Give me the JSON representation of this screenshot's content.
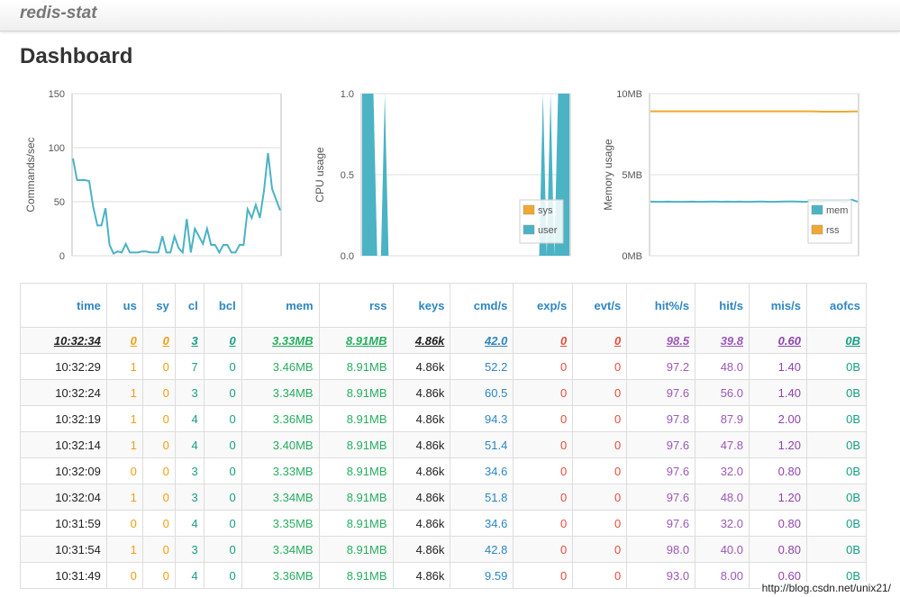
{
  "app": {
    "brand": "redis-stat"
  },
  "page": {
    "title": "Dashboard"
  },
  "chart_data": [
    {
      "type": "line",
      "ylabel": "Commands/sec",
      "ylim": [
        0,
        150
      ],
      "y_ticks": [
        "150",
        "100",
        "50",
        "0"
      ],
      "grid": true,
      "series": [
        {
          "name": "",
          "color": "#4bb3c4",
          "values": [
            90,
            70,
            70,
            70,
            69,
            45,
            28,
            28,
            44,
            10,
            2,
            4,
            3,
            11,
            3,
            3,
            3,
            4,
            4,
            3,
            3,
            3,
            18,
            3,
            3,
            18,
            7,
            3,
            34,
            3,
            25,
            18,
            11,
            25,
            10,
            10,
            3,
            10,
            10,
            3,
            3,
            10,
            10,
            43,
            35,
            47,
            35,
            60,
            95,
            62,
            52,
            42
          ]
        }
      ]
    },
    {
      "type": "area",
      "ylabel": "CPU usage",
      "ylim": [
        0,
        1
      ],
      "y_ticks": [
        "1.0",
        "0.5",
        "0.0"
      ],
      "grid": true,
      "legend": "bottom-right",
      "series": [
        {
          "name": "sys",
          "color": "#f0a830",
          "values": []
        },
        {
          "name": "user",
          "color": "#4bb3c4",
          "values": [
            1,
            1,
            1,
            1,
            0,
            0,
            1,
            0,
            0,
            0,
            0,
            0,
            0,
            0,
            0,
            0,
            0,
            0,
            0,
            0,
            0,
            0,
            0,
            0,
            0,
            0,
            0,
            0,
            0,
            0,
            0,
            0,
            0,
            0,
            0,
            0,
            0,
            0,
            0,
            0,
            0,
            0,
            0,
            0,
            0,
            0,
            0,
            0,
            1,
            0,
            1,
            0,
            1,
            1,
            1,
            1
          ]
        }
      ]
    },
    {
      "type": "line",
      "ylabel": "Memory usage",
      "ylim": [
        0,
        10
      ],
      "y_ticks": [
        "10MB",
        "5MB",
        "0MB"
      ],
      "grid": true,
      "legend": "bottom-right",
      "series": [
        {
          "name": "mem",
          "color": "#4bb3c4",
          "values": [
            3.34,
            3.33,
            3.33,
            3.34,
            3.33,
            3.33,
            3.33,
            3.34,
            3.33,
            3.33,
            3.34,
            3.34,
            3.33,
            3.34,
            3.33,
            3.34,
            3.33,
            3.33,
            3.34,
            3.34,
            3.33,
            3.33,
            3.34,
            3.35,
            3.35,
            3.34,
            3.33,
            3.34,
            3.33,
            3.34,
            3.36,
            3.4,
            3.36,
            3.34,
            3.46,
            3.33
          ]
        },
        {
          "name": "rss",
          "color": "#f0a830",
          "values": [
            8.91,
            8.91,
            8.91,
            8.91,
            8.91,
            8.91,
            8.91,
            8.91,
            8.91,
            8.91,
            8.91,
            8.91,
            8.91,
            8.91,
            8.91,
            8.91,
            8.91,
            8.91,
            8.91,
            8.91,
            8.91,
            8.91,
            8.91,
            8.91,
            8.91,
            8.91,
            8.91,
            8.91,
            8.9,
            8.89,
            8.89,
            8.89,
            8.89,
            8.89,
            8.9,
            8.9
          ]
        }
      ]
    }
  ],
  "table": {
    "headers": [
      "time",
      "us",
      "sy",
      "cl",
      "bcl",
      "mem",
      "rss",
      "keys",
      "cmd/s",
      "exp/s",
      "evt/s",
      "hit%/s",
      "hit/s",
      "mis/s",
      "aofcs"
    ],
    "rows": [
      [
        "10:32:34",
        "0",
        "0",
        "3",
        "0",
        "3.33MB",
        "8.91MB",
        "4.86k",
        "42.0",
        "0",
        "0",
        "98.5",
        "39.8",
        "0.60",
        "0B"
      ],
      [
        "10:32:29",
        "1",
        "0",
        "7",
        "0",
        "3.46MB",
        "8.91MB",
        "4.86k",
        "52.2",
        "0",
        "0",
        "97.2",
        "48.0",
        "1.40",
        "0B"
      ],
      [
        "10:32:24",
        "1",
        "0",
        "3",
        "0",
        "3.34MB",
        "8.91MB",
        "4.86k",
        "60.5",
        "0",
        "0",
        "97.6",
        "56.0",
        "1.40",
        "0B"
      ],
      [
        "10:32:19",
        "1",
        "0",
        "4",
        "0",
        "3.36MB",
        "8.91MB",
        "4.86k",
        "94.3",
        "0",
        "0",
        "97.8",
        "87.9",
        "2.00",
        "0B"
      ],
      [
        "10:32:14",
        "1",
        "0",
        "4",
        "0",
        "3.40MB",
        "8.91MB",
        "4.86k",
        "51.4",
        "0",
        "0",
        "97.6",
        "47.8",
        "1.20",
        "0B"
      ],
      [
        "10:32:09",
        "0",
        "0",
        "3",
        "0",
        "3.33MB",
        "8.91MB",
        "4.86k",
        "34.6",
        "0",
        "0",
        "97.6",
        "32.0",
        "0.80",
        "0B"
      ],
      [
        "10:32:04",
        "1",
        "0",
        "3",
        "0",
        "3.34MB",
        "8.91MB",
        "4.86k",
        "51.8",
        "0",
        "0",
        "97.6",
        "48.0",
        "1.20",
        "0B"
      ],
      [
        "10:31:59",
        "0",
        "0",
        "4",
        "0",
        "3.35MB",
        "8.91MB",
        "4.86k",
        "34.6",
        "0",
        "0",
        "97.6",
        "32.0",
        "0.80",
        "0B"
      ],
      [
        "10:31:54",
        "1",
        "0",
        "3",
        "0",
        "3.34MB",
        "8.91MB",
        "4.86k",
        "42.8",
        "0",
        "0",
        "98.0",
        "40.0",
        "0.80",
        "0B"
      ],
      [
        "10:31:49",
        "0",
        "0",
        "4",
        "0",
        "3.36MB",
        "8.91MB",
        "4.86k",
        "9.59",
        "0",
        "0",
        "93.0",
        "8.00",
        "0.60",
        "0B"
      ]
    ]
  },
  "watermark": "http://blog.csdn.net/unix21/"
}
